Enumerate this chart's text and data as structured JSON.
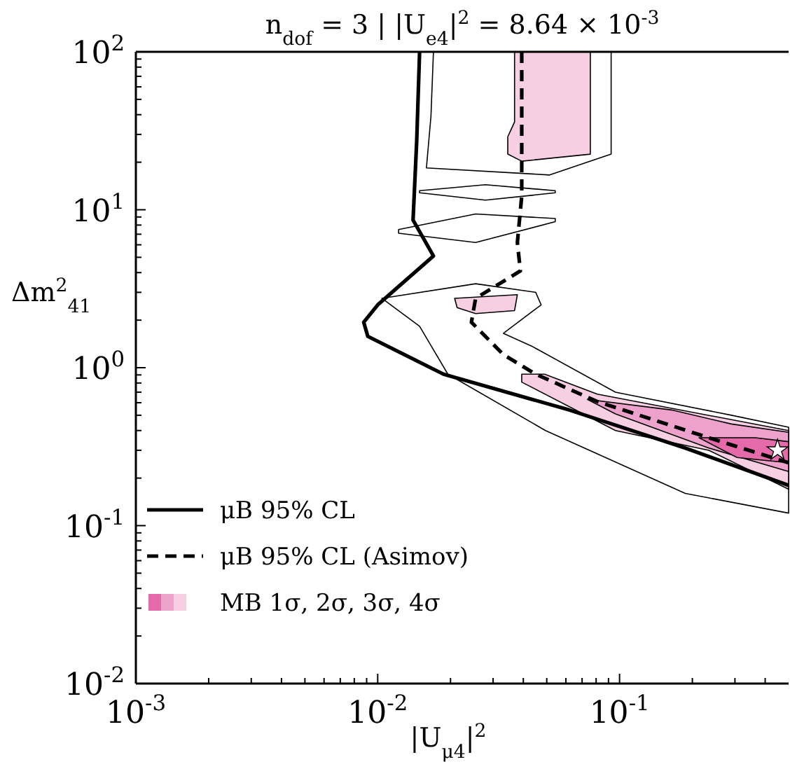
{
  "chart_data": {
    "type": "line",
    "title": "n$_{dof}$ = 3 | |U$_{e4}$|$^{2}$ = 8.64 × 10$^{-3}$",
    "xlabel": "|U$_{μ4}$|$^{2}$",
    "ylabel": "Δm$^{2}$$_{41}$",
    "log": "xy",
    "grid": false,
    "legend": "bottom left",
    "marker": "none",
    "xlim": [
      0.001,
      0.5
    ],
    "ylim": [
      0.01,
      100
    ],
    "xticks": [
      {
        "value": 0.001,
        "label": "10$^{-3}$"
      },
      {
        "value": 0.002,
        "label": null
      },
      {
        "value": 0.003,
        "label": null
      },
      {
        "value": 0.004,
        "label": null
      },
      {
        "value": 0.005,
        "label": null
      },
      {
        "value": 0.006,
        "label": null
      },
      {
        "value": 0.007,
        "label": null
      },
      {
        "value": 0.008,
        "label": null
      },
      {
        "value": 0.009,
        "label": null
      },
      {
        "value": 0.01,
        "label": "10$^{-2}$"
      },
      {
        "value": 0.02,
        "label": null
      },
      {
        "value": 0.03,
        "label": null
      },
      {
        "value": 0.04,
        "label": null
      },
      {
        "value": 0.05,
        "label": null
      },
      {
        "value": 0.06,
        "label": null
      },
      {
        "value": 0.07,
        "label": null
      },
      {
        "value": 0.08,
        "label": null
      },
      {
        "value": 0.09,
        "label": null
      },
      {
        "value": 0.1,
        "label": "10$^{-1}$"
      },
      {
        "value": 0.2,
        "label": null
      },
      {
        "value": 0.3,
        "label": null
      },
      {
        "value": 0.4,
        "label": null
      }
    ],
    "yticks": [
      {
        "value": 0.01,
        "label": "10$^{-2}$"
      },
      {
        "value": 0.02,
        "label": null
      },
      {
        "value": 0.03,
        "label": null
      },
      {
        "value": 0.04,
        "label": null
      },
      {
        "value": 0.05,
        "label": null
      },
      {
        "value": 0.06,
        "label": null
      },
      {
        "value": 0.07,
        "label": null
      },
      {
        "value": 0.08,
        "label": null
      },
      {
        "value": 0.09,
        "label": null
      },
      {
        "value": 0.1,
        "label": "10$^{-1}$"
      },
      {
        "value": 0.2,
        "label": null
      },
      {
        "value": 0.3,
        "label": null
      },
      {
        "value": 0.4,
        "label": null
      },
      {
        "value": 0.5,
        "label": null
      },
      {
        "value": 0.6,
        "label": null
      },
      {
        "value": 0.7,
        "label": null
      },
      {
        "value": 0.8,
        "label": null
      },
      {
        "value": 0.9,
        "label": null
      },
      {
        "value": 1,
        "label": "10$^{0}$"
      },
      {
        "value": 2,
        "label": null
      },
      {
        "value": 3,
        "label": null
      },
      {
        "value": 4,
        "label": null
      },
      {
        "value": 5,
        "label": null
      },
      {
        "value": 6,
        "label": null
      },
      {
        "value": 7,
        "label": null
      },
      {
        "value": 8,
        "label": null
      },
      {
        "value": 9,
        "label": null
      },
      {
        "value": 10,
        "label": "10$^{1}$"
      },
      {
        "value": 20,
        "label": null
      },
      {
        "value": 30,
        "label": null
      },
      {
        "value": 40,
        "label": null
      },
      {
        "value": 50,
        "label": null
      },
      {
        "value": 60,
        "label": null
      },
      {
        "value": 70,
        "label": null
      },
      {
        "value": 80,
        "label": null
      },
      {
        "value": 90,
        "label": null
      },
      {
        "value": 100,
        "label": "10$^{2}$"
      }
    ],
    "series": [
      {
        "type": "area",
        "color": "#ffffff",
        "x": [
          0.017,
          0.0923,
          0.0923,
          0.0514,
          0.0159,
          0.0166,
          0.017
        ],
        "values": [
          100,
          100,
          22.5,
          16.6,
          18.4,
          39,
          100
        ]
      },
      {
        "type": "area",
        "color": "#ffffff",
        "x": [
          0.0149,
          0.0279,
          0.0542,
          0.0542,
          0.0279,
          0.0149,
          0.0149
        ],
        "values": [
          13.2,
          14.4,
          13.2,
          12.8,
          11.5,
          12.8,
          13.2
        ]
      },
      {
        "type": "area",
        "color": "#ffffff",
        "x": [
          0.0122,
          0.0254,
          0.0542,
          0.0542,
          0.0254,
          0.0122,
          0.0122
        ],
        "values": [
          7.5,
          9.4,
          8.8,
          8.4,
          6.2,
          7.1,
          7.5
        ]
      },
      {
        "type": "area",
        "color": "#ffffff",
        "x": [
          0.0104,
          0.0254,
          0.045,
          0.0474,
          0.0331,
          0.0433,
          0.0962,
          0.29,
          0.5,
          0.5,
          0.187,
          0.0494,
          0.0195,
          0.0149,
          0.0104
        ],
        "values": [
          2.75,
          3.4,
          3,
          2.5,
          1.65,
          1.37,
          0.7,
          0.5,
          0.42,
          0.12,
          0.16,
          0.4,
          0.91,
          1.83,
          2.75
        ]
      },
      {
        "type": "area",
        "color": "#f6cfe3",
        "x": [
          0.0368,
          0.0757,
          0.0757,
          0.0394,
          0.0345,
          0.0345,
          0.0368,
          0.0368
        ],
        "values": [
          100,
          100,
          22.5,
          20.3,
          22.5,
          29,
          36,
          100
        ]
      },
      {
        "type": "area",
        "color": "#f6cfe3",
        "x": [
          0.0208,
          0.0378,
          0.0368,
          0.0254,
          0.0213,
          0.0208
        ],
        "values": [
          2.75,
          2.9,
          2.3,
          2.2,
          2.4,
          2.75
        ]
      },
      {
        "type": "area",
        "color": "#f6cfe3",
        "x": [
          0.0394,
          0.049,
          0.0809,
          0.5,
          0.5,
          0.234,
          0.0962,
          0.0394,
          0.0394
        ],
        "values": [
          0.91,
          0.91,
          0.68,
          0.4,
          0.17,
          0.3,
          0.4,
          0.81,
          0.91
        ]
      },
      {
        "type": "area",
        "color": "#eca2ca",
        "x": [
          0.0736,
          0.164,
          0.29,
          0.5,
          0.5,
          0.234,
          0.0962,
          0.0736
        ],
        "values": [
          0.63,
          0.54,
          0.44,
          0.39,
          0.22,
          0.31,
          0.51,
          0.63
        ]
      },
      {
        "type": "area",
        "name": "MB 1σ, 2σ, 3σ, 4σ",
        "color": "#e46aa9",
        "x": [
          0.213,
          0.364,
          0.5,
          0.5,
          0.306,
          0.213
        ],
        "values": [
          0.36,
          0.36,
          0.34,
          0.25,
          0.27,
          0.36
        ]
      },
      {
        "name": "μB 95% CL",
        "color": "#000000",
        "line_style": "solid",
        "x": [
          0.0149,
          0.0145,
          0.014,
          0.017,
          0.01,
          0.00875,
          0.0091,
          0.0187,
          0.0619,
          0.187,
          0.5
        ],
        "values": [
          100,
          27.6,
          8.6,
          5.1,
          2.5,
          1.94,
          1.58,
          0.91,
          0.54,
          0.31,
          0.18
        ]
      },
      {
        "name": "μB 95% CL (Asimov)",
        "color": "#000000",
        "line_style": "dashed",
        "x": [
          0.0394,
          0.0394,
          0.0378,
          0.0389,
          0.0254,
          0.0244,
          0.0331,
          0.045,
          0.0809,
          0.234,
          0.5
        ],
        "values": [
          100,
          12.2,
          6.2,
          4.1,
          2.75,
          1.94,
          1.21,
          0.91,
          0.61,
          0.36,
          0.25
        ]
      },
      {
        "type": "scatter",
        "color": "#ffffff",
        "marker": "star",
        "x": [
          0.45
        ],
        "values": [
          0.3
        ]
      }
    ]
  }
}
